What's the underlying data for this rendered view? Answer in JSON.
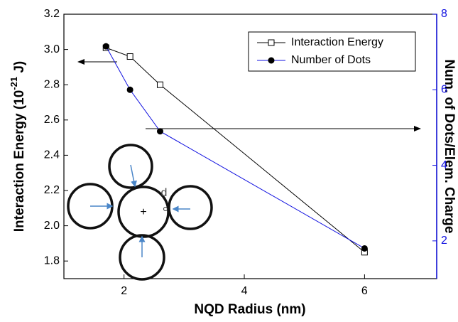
{
  "chart_data": {
    "type": "line",
    "x_label": "NQD Radius (nm)",
    "y_label_parts": [
      "Interaction Energy (10",
      "-21",
      " J)"
    ],
    "y2_label": "Num. of Dots/Elem. Charge",
    "annotation": "d",
    "xlim": [
      1,
      7.2
    ],
    "xticks": [
      2,
      4,
      6
    ],
    "ylim": [
      1.7,
      3.2
    ],
    "yticks": [
      1.8,
      {
        "value": 2.0,
        "label": "2.0"
      },
      2.2,
      2.4,
      2.6,
      2.8,
      {
        "value": 3.0,
        "label": "3.0"
      },
      3.2
    ],
    "y2lim": [
      1,
      8
    ],
    "y2ticks": [
      2,
      4,
      6,
      8
    ],
    "y2_color": "#1010e0",
    "legend": "top-right",
    "series": [
      {
        "name": "Interaction Energy",
        "color": "#000000",
        "marker": "open-square",
        "x": [
          1.7,
          2.1,
          2.6,
          6
        ],
        "values": [
          3.01,
          2.96,
          2.8,
          1.85
        ]
      },
      {
        "name": "Number of Dots",
        "color": "#1010e0",
        "marker": "filled-circle",
        "axis": "y2",
        "x": [
          1.7,
          2.1,
          2.6,
          6
        ],
        "values": [
          7.15,
          6.0,
          4.9,
          1.8
        ]
      }
    ]
  }
}
